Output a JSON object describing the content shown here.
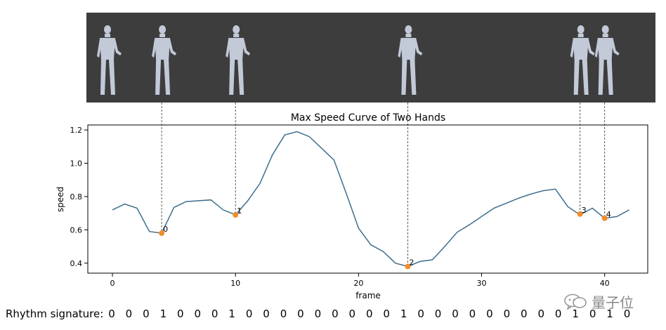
{
  "icons": {
    "figure": "humanoid-figure-icon",
    "watermark_logo": "wechat-bubble-icon"
  },
  "colors": {
    "line": "#3d6e8c",
    "marker": "#f28e2b",
    "strip_bg": "#3d3d3d",
    "figure": "#c2cad8"
  },
  "pose_strip": {
    "frames": [
      4,
      10,
      24,
      38,
      40
    ],
    "extra_figure_frames": [
      0
    ]
  },
  "chart_data": {
    "type": "line",
    "title": "Max Speed Curve of Two Hands",
    "xlabel": "frame",
    "ylabel": "speed",
    "xlim": [
      -2,
      43.5
    ],
    "ylim": [
      0.34,
      1.23
    ],
    "xticks": [
      0,
      10,
      20,
      30,
      40
    ],
    "yticks": [
      0.4,
      0.6,
      0.8,
      1.0,
      1.2
    ],
    "grid": false,
    "series": [
      {
        "x": [
          0,
          1,
          2,
          3,
          4,
          5,
          6,
          7,
          8,
          9,
          10,
          11,
          12,
          13,
          14,
          15,
          16,
          17,
          18,
          19,
          20,
          21,
          22,
          23,
          24,
          25,
          26,
          27,
          28,
          29,
          30,
          31,
          32,
          33,
          34,
          35,
          36,
          37,
          38,
          39,
          40,
          41,
          42
        ],
        "values": [
          0.72,
          0.755,
          0.73,
          0.59,
          0.58,
          0.735,
          0.77,
          0.775,
          0.78,
          0.72,
          0.69,
          0.775,
          0.88,
          1.05,
          1.17,
          1.19,
          1.16,
          1.09,
          1.02,
          0.82,
          0.61,
          0.51,
          0.47,
          0.4,
          0.38,
          0.41,
          0.42,
          0.5,
          0.585,
          0.63,
          0.68,
          0.73,
          0.76,
          0.79,
          0.815,
          0.835,
          0.845,
          0.74,
          0.69,
          0.73,
          0.67,
          0.68,
          0.72
        ]
      }
    ],
    "keyframes": [
      {
        "label": "0",
        "x": 4,
        "y": 0.58
      },
      {
        "label": "1",
        "x": 10,
        "y": 0.69
      },
      {
        "label": "2",
        "x": 24,
        "y": 0.38
      },
      {
        "label": "3",
        "x": 38,
        "y": 0.695
      },
      {
        "label": "4",
        "x": 40,
        "y": 0.67
      }
    ]
  },
  "rhythm": {
    "label": "Rhythm signature:",
    "bits": [
      "0",
      "0",
      "0",
      "1",
      "0",
      "0",
      "0",
      "1",
      "0",
      "0",
      "0",
      "0",
      "0",
      "0",
      "0",
      "0",
      "0",
      "1",
      "0",
      "0",
      "0",
      "0",
      "0",
      "0",
      "0",
      "0",
      "0",
      "1",
      "0",
      "1",
      "0"
    ]
  },
  "watermark": {
    "text": "量子位"
  }
}
